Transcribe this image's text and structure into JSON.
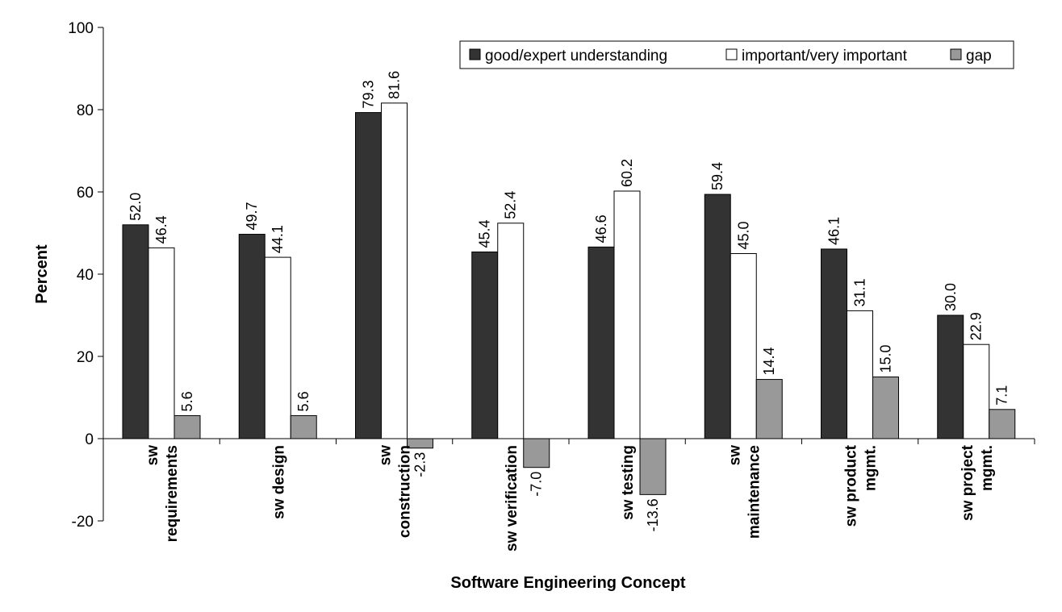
{
  "chart_data": {
    "type": "bar",
    "title": "",
    "xlabel": "Software Engineering Concept",
    "ylabel": "Percent",
    "ylim": [
      -20,
      100
    ],
    "yticks": [
      -20,
      0,
      20,
      40,
      60,
      80,
      100
    ],
    "grid": false,
    "legend_position": "top-right",
    "categories": [
      [
        "sw",
        "requirements"
      ],
      [
        "sw design"
      ],
      [
        "sw",
        "construction"
      ],
      [
        "sw verification"
      ],
      [
        "sw testing"
      ],
      [
        "sw",
        "maintenance"
      ],
      [
        "sw product",
        "mgmt."
      ],
      [
        "sw project",
        "mgmt."
      ]
    ],
    "series": [
      {
        "name": "good/expert understanding",
        "color": "#333333",
        "values": [
          52.0,
          49.7,
          79.3,
          45.4,
          46.6,
          59.4,
          46.1,
          30.0
        ],
        "labels": [
          "52.0",
          "49.7",
          "79.3",
          "45.4",
          "46.6",
          "59.4",
          "46.1",
          "30.0"
        ]
      },
      {
        "name": "important/very important",
        "color": "#ffffff",
        "values": [
          46.4,
          44.1,
          81.6,
          52.4,
          60.2,
          45.0,
          31.1,
          22.9
        ],
        "labels": [
          "46.4",
          "44.1",
          "81.6",
          "52.4",
          "60.2",
          "45.0",
          "31.1",
          "22.9"
        ]
      },
      {
        "name": "gap",
        "color": "#999999",
        "values": [
          5.6,
          5.6,
          -2.3,
          -7.0,
          -13.6,
          14.4,
          15.0,
          7.1
        ],
        "labels": [
          "5.6",
          "5.6",
          "-2.3",
          "-7.0",
          "-13.6",
          "14.4",
          "15.0",
          "7.1"
        ]
      }
    ]
  }
}
